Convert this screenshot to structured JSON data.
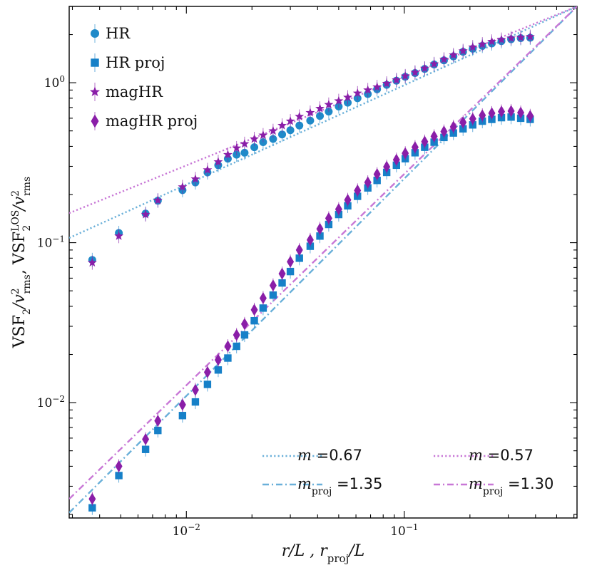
{
  "chart_data": {
    "type": "scatter",
    "x_scale": "log",
    "y_scale": "log",
    "xlim": [
      0.0029,
      0.62
    ],
    "ylim": [
      0.0019,
      3.0
    ],
    "grid": false,
    "x_ticks": [
      {
        "value": 0.01,
        "base": "10",
        "exp": "−2"
      },
      {
        "value": 0.1,
        "base": "10",
        "exp": "−1"
      }
    ],
    "y_ticks": [
      {
        "value": 0.01,
        "base": "10",
        "exp": "−2"
      },
      {
        "value": 0.1,
        "base": "10",
        "exp": "−1"
      },
      {
        "value": 1,
        "base": "10",
        "exp": "0"
      }
    ],
    "xlabel": {
      "main": "r/L ,  r",
      "sub": "proj",
      "tail": "/L"
    },
    "ylabel": {
      "p1": "VSF",
      "p1_sub": "2",
      "p2": "/v",
      "p2_sup": "2",
      "p2_sub": "rms",
      "p3": ",  VSF",
      "p3_sup": "LOS",
      "p3_sub": "2",
      "p4": "/v",
      "p4_sup": "2",
      "p4_sub": "rms"
    },
    "legend": {
      "placement": "upper-left",
      "entries": [
        {
          "series": "HR",
          "label": "HR"
        },
        {
          "series": "HR_proj",
          "label": "HR proj"
        },
        {
          "series": "magHR",
          "label": "magHR"
        },
        {
          "series": "magHR_proj",
          "label": "magHR proj"
        }
      ]
    },
    "fit_legend": {
      "placement": "lower-right",
      "entries": [
        {
          "line": "HR_fit",
          "label_main": "m",
          "label_sub": "",
          "value": " =0.67"
        },
        {
          "line": "magHR_fit",
          "label_main": "m",
          "label_sub": "",
          "value": " =0.57"
        },
        {
          "line": "HR_proj_fit",
          "label_main": "m",
          "label_sub": "proj",
          "value": " =1.35"
        },
        {
          "line": "magHR_proj_fit",
          "label_main": "m",
          "label_sub": "proj",
          "value": " =1.30"
        }
      ]
    },
    "series": [
      {
        "key": "HR",
        "marker": "circle",
        "color": "#1f8ac9",
        "x": [
          0.0037,
          0.0049,
          0.0065,
          0.0074,
          0.0096,
          0.011,
          0.0125,
          0.014,
          0.0155,
          0.017,
          0.0185,
          0.0205,
          0.0225,
          0.025,
          0.0275,
          0.03,
          0.033,
          0.037,
          0.041,
          0.045,
          0.05,
          0.055,
          0.061,
          0.068,
          0.075,
          0.083,
          0.092,
          0.101,
          0.112,
          0.124,
          0.137,
          0.152,
          0.168,
          0.186,
          0.206,
          0.228,
          0.252,
          0.279,
          0.309,
          0.342,
          0.378
        ],
        "y": [
          0.078,
          0.115,
          0.152,
          0.183,
          0.213,
          0.238,
          0.275,
          0.305,
          0.335,
          0.355,
          0.365,
          0.395,
          0.425,
          0.445,
          0.475,
          0.505,
          0.54,
          0.58,
          0.62,
          0.66,
          0.71,
          0.75,
          0.8,
          0.85,
          0.91,
          0.97,
          1.03,
          1.09,
          1.15,
          1.22,
          1.3,
          1.38,
          1.46,
          1.56,
          1.63,
          1.7,
          1.76,
          1.82,
          1.87,
          1.9,
          1.91
        ]
      },
      {
        "key": "HR_proj",
        "marker": "square",
        "color": "#1680c8",
        "x": [
          0.0037,
          0.0049,
          0.0065,
          0.0074,
          0.0096,
          0.011,
          0.0125,
          0.014,
          0.0155,
          0.017,
          0.0185,
          0.0205,
          0.0225,
          0.025,
          0.0275,
          0.03,
          0.033,
          0.037,
          0.041,
          0.045,
          0.05,
          0.055,
          0.061,
          0.068,
          0.075,
          0.083,
          0.092,
          0.101,
          0.112,
          0.124,
          0.137,
          0.152,
          0.168,
          0.186,
          0.206,
          0.228,
          0.252,
          0.279,
          0.309,
          0.342,
          0.378
        ],
        "y": [
          0.0022,
          0.0035,
          0.0051,
          0.0067,
          0.0083,
          0.0101,
          0.013,
          0.016,
          0.019,
          0.0225,
          0.0265,
          0.0325,
          0.039,
          0.047,
          0.056,
          0.066,
          0.08,
          0.095,
          0.11,
          0.13,
          0.15,
          0.17,
          0.195,
          0.22,
          0.245,
          0.275,
          0.305,
          0.335,
          0.365,
          0.395,
          0.425,
          0.455,
          0.485,
          0.515,
          0.545,
          0.575,
          0.59,
          0.605,
          0.61,
          0.6,
          0.59
        ]
      },
      {
        "key": "magHR",
        "marker": "star",
        "color": "#8a1ea8",
        "x": [
          0.0037,
          0.0049,
          0.0065,
          0.0074,
          0.0096,
          0.011,
          0.0125,
          0.014,
          0.0155,
          0.017,
          0.0185,
          0.0205,
          0.0225,
          0.025,
          0.0275,
          0.03,
          0.033,
          0.037,
          0.041,
          0.045,
          0.05,
          0.055,
          0.061,
          0.068,
          0.075,
          0.083,
          0.092,
          0.101,
          0.112,
          0.124,
          0.137,
          0.152,
          0.168,
          0.186,
          0.206,
          0.228,
          0.252,
          0.279,
          0.309,
          0.342,
          0.378
        ],
        "y": [
          0.075,
          0.11,
          0.15,
          0.184,
          0.223,
          0.25,
          0.285,
          0.32,
          0.355,
          0.39,
          0.415,
          0.445,
          0.47,
          0.5,
          0.54,
          0.575,
          0.615,
          0.65,
          0.69,
          0.73,
          0.77,
          0.81,
          0.86,
          0.9,
          0.94,
          0.99,
          1.04,
          1.1,
          1.16,
          1.23,
          1.31,
          1.4,
          1.49,
          1.58,
          1.67,
          1.74,
          1.81,
          1.86,
          1.9,
          1.92,
          1.94
        ]
      },
      {
        "key": "magHR_proj",
        "marker": "diamond",
        "color": "#8a1ea8",
        "x": [
          0.0037,
          0.0049,
          0.0065,
          0.0074,
          0.0096,
          0.011,
          0.0125,
          0.014,
          0.0155,
          0.017,
          0.0185,
          0.0205,
          0.0225,
          0.025,
          0.0275,
          0.03,
          0.033,
          0.037,
          0.041,
          0.045,
          0.05,
          0.055,
          0.061,
          0.068,
          0.075,
          0.083,
          0.092,
          0.101,
          0.112,
          0.124,
          0.137,
          0.152,
          0.168,
          0.186,
          0.206,
          0.228,
          0.252,
          0.279,
          0.309,
          0.342,
          0.378
        ],
        "y": [
          0.0025,
          0.004,
          0.0059,
          0.0077,
          0.0097,
          0.012,
          0.0155,
          0.0185,
          0.0225,
          0.0265,
          0.031,
          0.038,
          0.045,
          0.054,
          0.064,
          0.076,
          0.09,
          0.104,
          0.122,
          0.142,
          0.162,
          0.185,
          0.212,
          0.238,
          0.268,
          0.298,
          0.33,
          0.362,
          0.395,
          0.428,
          0.462,
          0.495,
          0.53,
          0.565,
          0.595,
          0.625,
          0.645,
          0.66,
          0.665,
          0.65,
          0.62
        ]
      }
    ],
    "fit_lines": [
      {
        "key": "HR_fit",
        "style": "dotted",
        "color": "#6ab0d9",
        "x": [
          0.0029,
          0.62
        ],
        "y": [
          0.107,
          3.0
        ]
      },
      {
        "key": "magHR_fit",
        "style": "dotted",
        "color": "#c877d6",
        "x": [
          0.0029,
          0.62
        ],
        "y": [
          0.153,
          3.0
        ]
      },
      {
        "key": "HR_proj_fit",
        "style": "dashdot",
        "color": "#6ab0d9",
        "x": [
          0.0029,
          0.62
        ],
        "y": [
          0.00205,
          3.0
        ]
      },
      {
        "key": "magHR_proj_fit",
        "style": "dashdot",
        "color": "#c877d6",
        "x": [
          0.0029,
          0.62
        ],
        "y": [
          0.0025,
          3.0
        ]
      }
    ]
  }
}
